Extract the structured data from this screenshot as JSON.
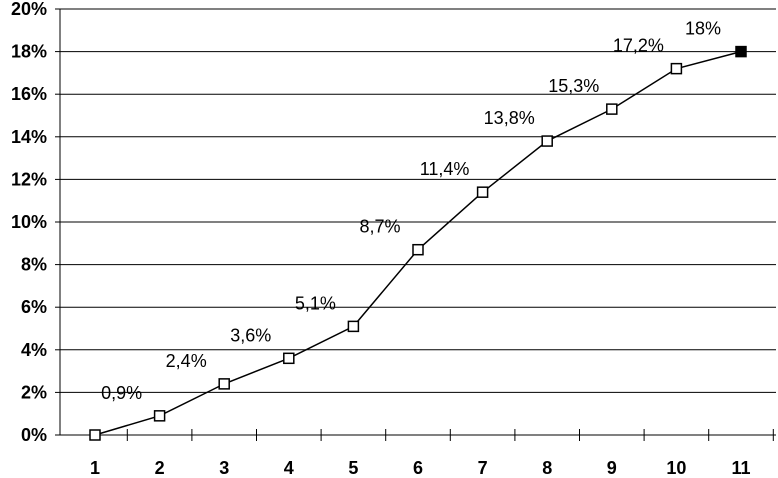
{
  "chart_data": {
    "type": "line",
    "x": [
      "1",
      "2",
      "3",
      "4",
      "5",
      "6",
      "7",
      "8",
      "9",
      "10",
      "11"
    ],
    "values": [
      0,
      0.9,
      2.4,
      3.6,
      5.1,
      8.7,
      11.4,
      13.8,
      15.3,
      17.2,
      18
    ],
    "data_labels": [
      "",
      "0,9%",
      "2,4%",
      "3,6%",
      "5,1%",
      "8,7%",
      "11,4%",
      "13,8%",
      "15,3%",
      "17,2%",
      "18%"
    ],
    "y_tick_labels": [
      "0%",
      "2%",
      "4%",
      "6%",
      "8%",
      "10%",
      "12%",
      "14%",
      "16%",
      "18%",
      "20%"
    ],
    "ylim": [
      0,
      20
    ],
    "grid": true,
    "title": "",
    "xlabel": "",
    "ylabel": "",
    "line_color": "#000000",
    "marker_fill": "#ffffff",
    "last_marker_fill": "#000000"
  }
}
